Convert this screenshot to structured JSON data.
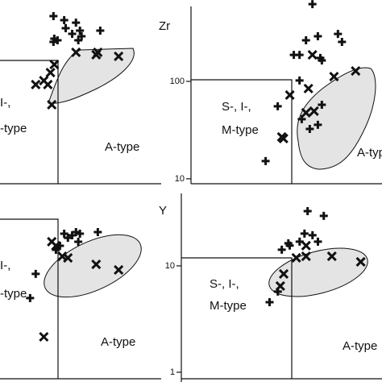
{
  "chart_data": [
    {
      "type": "scatter",
      "log_x": true,
      "log_y": true,
      "xlim": [
        1.5,
        7
      ],
      "ylim": [
        19,
        1460
      ],
      "annotations": [
        "I-,",
        "-type",
        "A-type"
      ],
      "series": [
        {
          "marker": "plus",
          "color": "#111111",
          "x": [
            2.5,
            2.52,
            2.5,
            2.77,
            2.81,
            2.99,
            3.1,
            3.22,
            3.27,
            3.17,
            3.91,
            2.6
          ],
          "values": [
            998,
            585,
            542,
            906,
            750,
            656,
            855,
            708,
            620,
            563,
            708,
            563
          ]
        },
        {
          "marker": "cross",
          "color": "#111111",
          "x": [
            2.52,
            2.43,
            2.28,
            2.11,
            2.37,
            2.46,
            3.1,
            3.76,
            3.82,
            4.66
          ],
          "values": [
            318,
            263,
            217,
            198,
            198,
            123,
            424,
            400,
            424,
            385
          ]
        }
      ]
    },
    {
      "type": "scatter",
      "log_x": true,
      "log_y": true,
      "xlim": [
        1,
        6.2
      ],
      "ylim": [
        8.9,
        684
      ],
      "yticks": [
        10,
        100
      ],
      "y_label": "Zr",
      "annotations": [
        "S-, I-,",
        "M-type",
        "A-type"
      ],
      "series": [
        {
          "marker": "plus",
          "color": "#111111",
          "x": [
            3.19,
            2.67,
            2.82,
            3.0,
            3.36,
            3.44,
            3.49,
            4.07,
            4.23,
            2.82,
            3.49,
            3.36,
            3.11,
            2.88,
            2.04,
            2.29
          ],
          "values": [
            621,
            187,
            187,
            264,
            290,
            174,
            164,
            307,
            254,
            102,
            57.5,
            35.8,
            32.5,
            40.9,
            15.2,
            55.5
          ]
        },
        {
          "marker": "cross",
          "color": "#111111",
          "x": [
            2.38,
            2.42,
            3.0,
            3.07,
            3.24,
            3.92,
            4.82,
            2.57,
            3.19
          ],
          "values": [
            26.9,
            25.9,
            47.6,
            84.4,
            49.5,
            112,
            128,
            72.4,
            187
          ]
        }
      ]
    },
    {
      "type": "scatter",
      "log_x": true,
      "log_y": true,
      "xlim": [
        1.5,
        7
      ],
      "ylim": [
        0.47,
        28
      ],
      "annotations": [
        "I-,",
        "-type",
        "A-type"
      ],
      "series": [
        {
          "marker": "plus",
          "color": "#111111",
          "x": [
            2.77,
            2.87,
            2.99,
            3.1,
            3.22,
            3.17,
            3.82,
            2.56,
            2.66,
            2.11,
            2.0
          ],
          "values": [
            11.7,
            10.7,
            11.3,
            12.1,
            11.7,
            9.82,
            12.1,
            8.24,
            9.0,
            4.89,
            2.9
          ]
        },
        {
          "marker": "cross",
          "color": "#111111",
          "x": [
            2.46,
            2.56,
            2.72,
            3.76,
            4.66,
            2.28,
            2.87
          ],
          "values": [
            9.82,
            9.0,
            7.16,
            6.02,
            5.33,
            1.25,
            6.92
          ]
        }
      ]
    },
    {
      "type": "scatter",
      "log_x": true,
      "log_y": true,
      "xlim": [
        1,
        5.7
      ],
      "ylim": [
        0.81,
        48
      ],
      "yticks": [
        1,
        10
      ],
      "y_label": "Y",
      "annotations": [
        "S-, I-,",
        "M-type",
        "A-type"
      ],
      "series": [
        {
          "marker": "plus",
          "color": "#111111",
          "x": [
            2.99,
            3.44,
            2.91,
            3.12,
            2.79,
            3.27,
            2.56,
            2.39,
            2.53,
            2.15,
            2.31
          ],
          "values": [
            32.7,
            29.5,
            20.1,
            19.4,
            16.9,
            16.9,
            15.5,
            14.2,
            16.3,
            4.56,
            5.73
          ]
        },
        {
          "marker": "cross",
          "color": "#111111",
          "x": [
            2.43,
            2.36,
            2.95,
            3.69,
            4.74,
            2.95,
            2.71
          ],
          "values": [
            8.4,
            6.47,
            15.5,
            12.3,
            10.9,
            12.3,
            11.9
          ]
        }
      ]
    }
  ]
}
